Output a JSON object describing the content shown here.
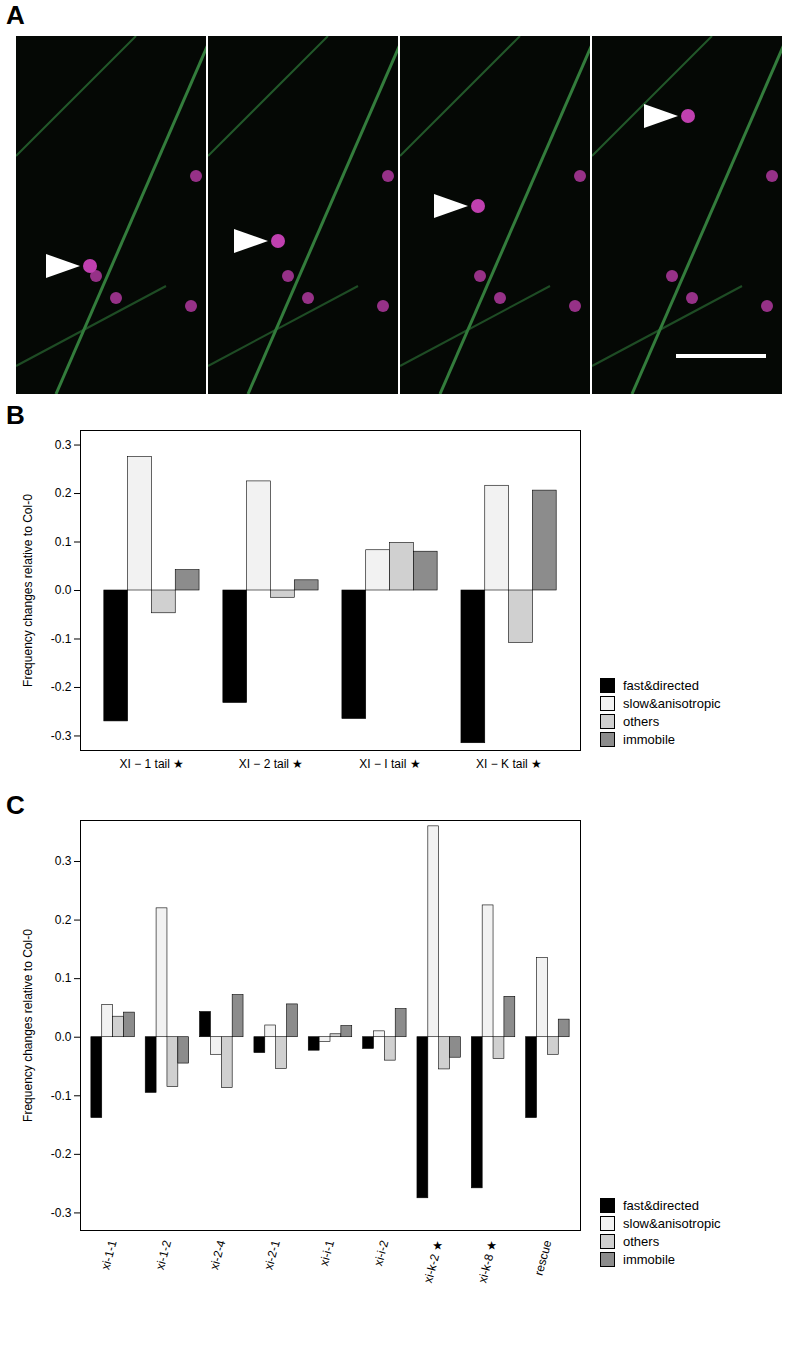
{
  "image_panel": {
    "label": "A"
  },
  "chart_data": [
    {
      "type": "bar",
      "title": "B",
      "ylabel": "Frequency changes relative to Col-0",
      "legend": "right",
      "categories": [
        "XI − 1 tail ★",
        "XI − 2 tail ★",
        "XI − I tail ★",
        "XI − K tail ★"
      ],
      "series": [
        {
          "name": "fast&directed",
          "color": "#000000",
          "values": [
            -0.27,
            -0.232,
            -0.265,
            -0.315
          ]
        },
        {
          "name": "slow&anisotropic",
          "color": "#f2f2f2",
          "values": [
            0.275,
            0.225,
            0.083,
            0.216
          ]
        },
        {
          "name": "others",
          "color": "#d0d0d0",
          "values": [
            -0.047,
            -0.015,
            0.098,
            -0.108
          ]
        },
        {
          "name": "immobile",
          "color": "#8c8c8c",
          "values": [
            0.042,
            0.021,
            0.08,
            0.206
          ]
        }
      ],
      "ylim": [
        -0.33,
        0.33
      ],
      "yticks": [
        -0.3,
        -0.2,
        -0.1,
        {
          "value": 0,
          "label": "0.0"
        },
        0.1,
        0.2,
        0.3
      ]
    },
    {
      "type": "bar",
      "title": "C",
      "ylabel": "Frequency changes relative to Col-0",
      "legend": "right",
      "categories": [
        "xi-1-1",
        "xi-1-2",
        "xi-2-4",
        "xi-2-1",
        "xi-i-1",
        "xi-i-2",
        "xi-k-2 ★",
        "xi-k-8 ★",
        "rescue"
      ],
      "series": [
        {
          "name": "fast&directed",
          "color": "#000000",
          "values": [
            -0.138,
            -0.095,
            0.043,
            -0.027,
            -0.023,
            -0.02,
            -0.275,
            -0.258,
            -0.138
          ]
        },
        {
          "name": "slow&anisotropic",
          "color": "#f2f2f2",
          "values": [
            0.055,
            0.22,
            -0.03,
            0.02,
            -0.008,
            0.01,
            0.36,
            0.225,
            0.135
          ]
        },
        {
          "name": "others",
          "color": "#d0d0d0",
          "values": [
            0.035,
            -0.085,
            -0.087,
            -0.054,
            0.005,
            -0.04,
            -0.055,
            -0.037,
            -0.03
          ]
        },
        {
          "name": "immobile",
          "color": "#8c8c8c",
          "values": [
            0.042,
            -0.045,
            0.072,
            0.056,
            0.019,
            0.048,
            -0.035,
            0.069,
            0.03
          ]
        }
      ],
      "ylim": [
        -0.33,
        0.37
      ],
      "yticks": [
        -0.3,
        -0.2,
        -0.1,
        {
          "value": 0,
          "label": "0.0"
        },
        0.1,
        0.2,
        0.3
      ]
    }
  ]
}
